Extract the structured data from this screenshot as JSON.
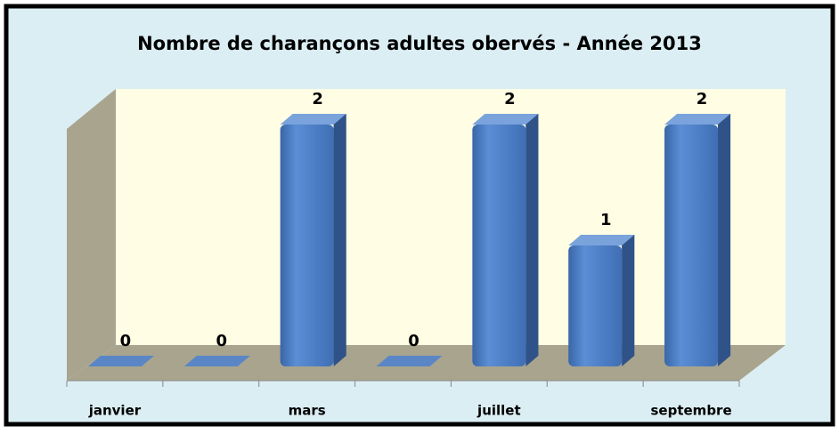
{
  "chart_data": {
    "type": "bar3d",
    "title": "Nombre de charançons adultes obervés - Année 2013",
    "categories": [
      "janvier",
      null,
      "mars",
      null,
      "juillet",
      null,
      "septembre"
    ],
    "values": [
      0,
      0,
      2,
      0,
      2,
      1,
      2
    ],
    "color": "#4f81bd",
    "ylim": [
      0,
      2
    ]
  }
}
